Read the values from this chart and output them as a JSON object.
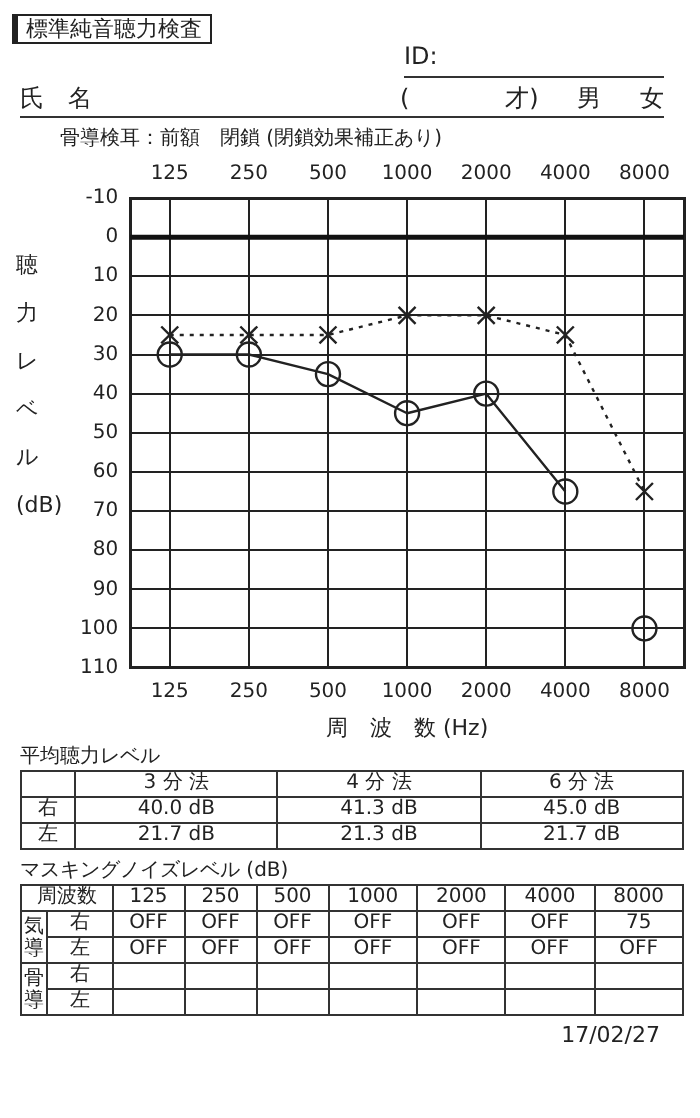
{
  "chart_data": [
    {
      "type": "line",
      "title": "標準純音聴力検査",
      "xlabel": "周　波　数 (Hz)",
      "ylabel": "聴力レベル (dB)",
      "categories": [
        "125",
        "250",
        "500",
        "1000",
        "2000",
        "4000",
        "8000"
      ],
      "series": [
        {
          "type": "line",
          "color": "#222222",
          "marker": "circle",
          "line_style": "solid",
          "values": [
            30,
            30,
            35,
            45,
            40,
            65,
            null
          ]
        },
        {
          "type": "line",
          "color": "#222222",
          "marker": "cross",
          "line_style": "dotted",
          "values": [
            25,
            25,
            25,
            20,
            20,
            25,
            65
          ]
        },
        {
          "type": "scatter",
          "color": "#222222",
          "marker": "circle",
          "values": [
            null,
            null,
            null,
            null,
            null,
            null,
            100
          ]
        }
      ],
      "ylim": [
        110,
        -10
      ],
      "yticks": [
        -10,
        0,
        10,
        20,
        30,
        40,
        50,
        60,
        70,
        80,
        90,
        100,
        110
      ],
      "grid": true,
      "ref_lines": [
        {
          "axis": "y",
          "value": 0
        }
      ],
      "annotations": [
        "ID:",
        "氏　名",
        "(　　　　才)",
        "男",
        "女",
        "骨導検耳：前額　閉鎖 (閉鎖効果補正あり)",
        "17/02/27"
      ]
    },
    {
      "type": "other",
      "title": "平均聴力レベル",
      "annotations": [
        "3 分 法",
        "4 分 法",
        "6 分 法",
        "右",
        "40.0 dB",
        "41.3 dB",
        "45.0 dB",
        "左",
        "21.7 dB",
        "21.3 dB",
        "21.7 dB"
      ]
    },
    {
      "type": "other",
      "title": "マスキングノイズレベル (dB)",
      "annotations": [
        "周波数",
        "125",
        "250",
        "500",
        "1000",
        "2000",
        "4000",
        "8000",
        "気導",
        "右",
        "OFF",
        "OFF",
        "OFF",
        "OFF",
        "OFF",
        "OFF",
        "75",
        "左",
        "OFF",
        "OFF",
        "OFF",
        "OFF",
        "OFF",
        "OFF",
        "OFF",
        "骨導",
        "右",
        "左"
      ]
    }
  ]
}
